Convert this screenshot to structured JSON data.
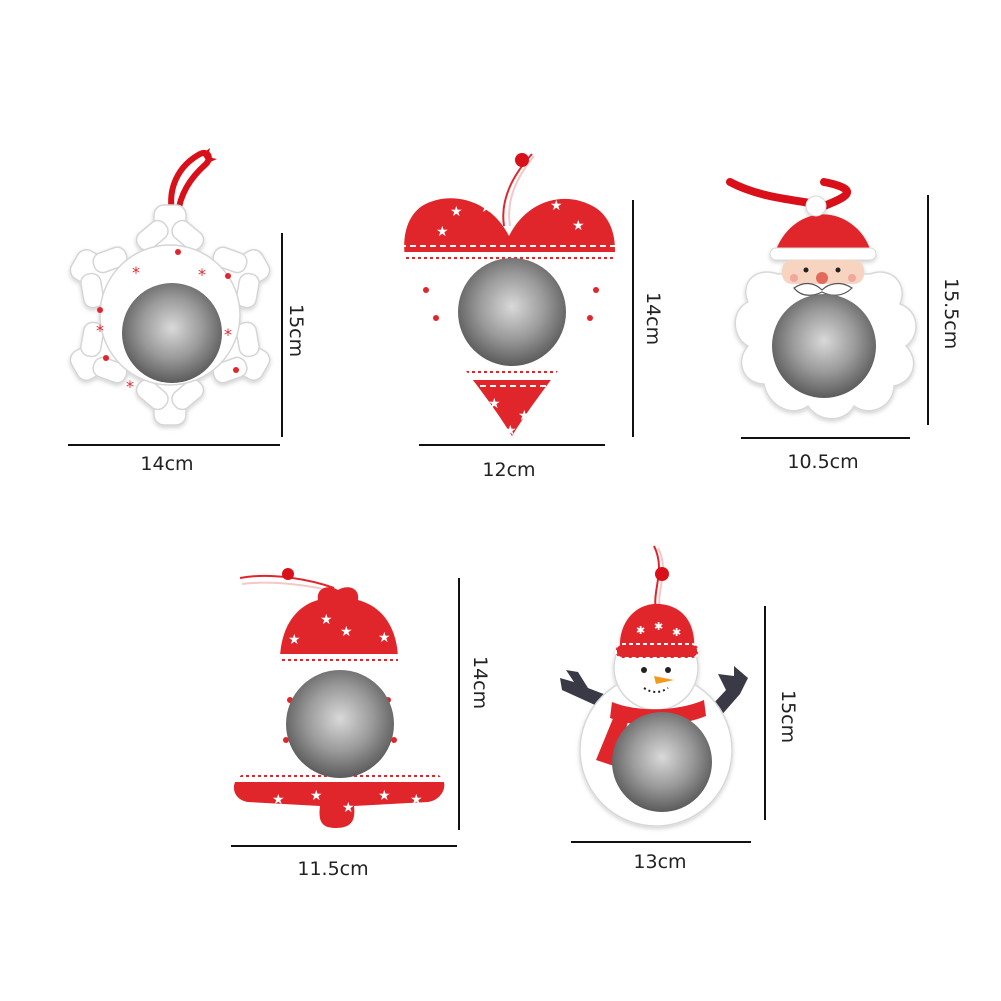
{
  "ornaments": [
    {
      "shape": "snowflake",
      "width_label": "14cm",
      "height_label": "15cm"
    },
    {
      "shape": "heart",
      "width_label": "12cm",
      "height_label": "14cm"
    },
    {
      "shape": "santa",
      "width_label": "10.5cm",
      "height_label": "15.5cm"
    },
    {
      "shape": "bell",
      "width_label": "11.5cm",
      "height_label": "14cm"
    },
    {
      "shape": "snowman",
      "width_label": "13cm",
      "height_label": "15cm"
    }
  ],
  "colors": {
    "red": "#e0262c",
    "white": "#ffffff",
    "photo": "#8d8d8d",
    "ribbon": "#d9101a",
    "orange": "#f29a1d",
    "arms": "#3a3a46",
    "dimension": "#111111"
  }
}
